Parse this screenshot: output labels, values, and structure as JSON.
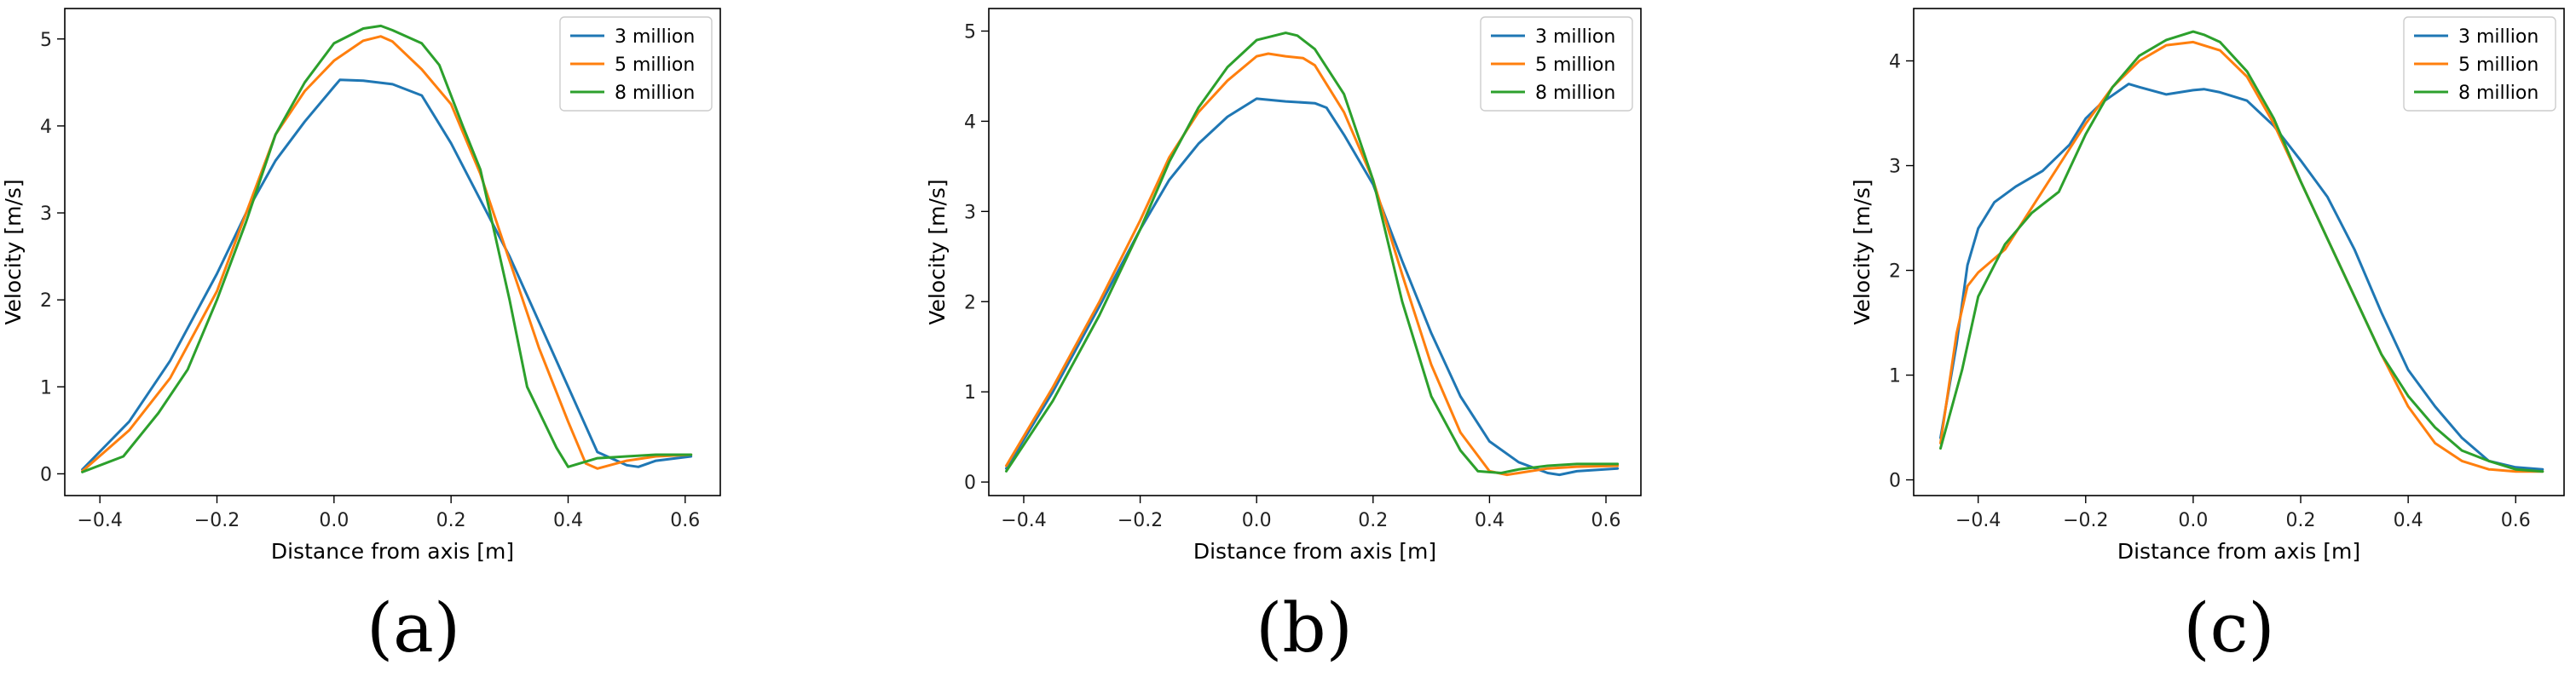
{
  "chart_data": [
    {
      "type": "line",
      "panel_label": "(a)",
      "xlabel": "Distance from axis [m]",
      "ylabel": "Velocity [m/s]",
      "xlim": [
        -0.46,
        0.66
      ],
      "ylim": [
        -0.25,
        5.35
      ],
      "xticks": [
        -0.4,
        -0.2,
        0.0,
        0.2,
        0.4,
        0.6
      ],
      "xtick_labels": [
        "−0.4",
        "−0.2",
        "0.0",
        "0.2",
        "0.4",
        "0.6"
      ],
      "yticks": [
        0,
        1,
        2,
        3,
        4,
        5
      ],
      "ytick_labels": [
        "0",
        "1",
        "2",
        "3",
        "4",
        "5"
      ],
      "grid": false,
      "legend_position": "top-right",
      "series": [
        {
          "name": "3 million",
          "color": "#1f77b4",
          "x": [
            -0.43,
            -0.35,
            -0.28,
            -0.2,
            -0.15,
            -0.1,
            -0.05,
            0,
            0.01,
            0.05,
            0.1,
            0.15,
            0.2,
            0.25,
            0.3,
            0.35,
            0.4,
            0.45,
            0.5,
            0.52,
            0.55,
            0.61
          ],
          "y": [
            0.05,
            0.6,
            1.3,
            2.3,
            3.0,
            3.6,
            4.05,
            4.45,
            4.53,
            4.52,
            4.48,
            4.35,
            3.8,
            3.15,
            2.5,
            1.75,
            1.0,
            0.25,
            0.1,
            0.08,
            0.15,
            0.2
          ]
        },
        {
          "name": "5 million",
          "color": "#ff7f0e",
          "x": [
            -0.43,
            -0.35,
            -0.28,
            -0.2,
            -0.15,
            -0.1,
            -0.05,
            0,
            0.05,
            0.08,
            0.1,
            0.15,
            0.2,
            0.25,
            0.3,
            0.35,
            0.4,
            0.43,
            0.45,
            0.5,
            0.55,
            0.61
          ],
          "y": [
            0.03,
            0.5,
            1.1,
            2.1,
            3.0,
            3.9,
            4.4,
            4.75,
            4.98,
            5.03,
            4.97,
            4.65,
            4.25,
            3.45,
            2.45,
            1.45,
            0.6,
            0.12,
            0.06,
            0.15,
            0.2,
            0.22
          ]
        },
        {
          "name": "8 million",
          "color": "#2ca02c",
          "x": [
            -0.43,
            -0.36,
            -0.3,
            -0.25,
            -0.2,
            -0.15,
            -0.1,
            -0.05,
            0,
            0.05,
            0.08,
            0.1,
            0.15,
            0.18,
            0.22,
            0.25,
            0.3,
            0.33,
            0.38,
            0.4,
            0.45,
            0.5,
            0.55,
            0.61
          ],
          "y": [
            0.02,
            0.2,
            0.7,
            1.2,
            2.0,
            2.9,
            3.9,
            4.5,
            4.95,
            5.12,
            5.15,
            5.1,
            4.95,
            4.7,
            4.0,
            3.5,
            2.0,
            1.0,
            0.3,
            0.08,
            0.18,
            0.2,
            0.22,
            0.22
          ]
        }
      ]
    },
    {
      "type": "line",
      "panel_label": "(b)",
      "xlabel": "Distance from axis [m]",
      "ylabel": "Velocity [m/s]",
      "xlim": [
        -0.46,
        0.66
      ],
      "ylim": [
        -0.15,
        5.25
      ],
      "xticks": [
        -0.4,
        -0.2,
        0.0,
        0.2,
        0.4,
        0.6
      ],
      "xtick_labels": [
        "−0.4",
        "−0.2",
        "0.0",
        "0.2",
        "0.4",
        "0.6"
      ],
      "yticks": [
        0,
        1,
        2,
        3,
        4,
        5
      ],
      "ytick_labels": [
        "0",
        "1",
        "2",
        "3",
        "4",
        "5"
      ],
      "grid": false,
      "legend_position": "top-right",
      "series": [
        {
          "name": "3 million",
          "color": "#1f77b4",
          "x": [
            -0.43,
            -0.35,
            -0.27,
            -0.2,
            -0.15,
            -0.1,
            -0.05,
            0,
            0.05,
            0.1,
            0.12,
            0.15,
            0.2,
            0.25,
            0.3,
            0.35,
            0.4,
            0.45,
            0.5,
            0.52,
            0.55,
            0.62
          ],
          "y": [
            0.15,
            1.0,
            1.95,
            2.8,
            3.35,
            3.75,
            4.05,
            4.25,
            4.22,
            4.2,
            4.15,
            3.85,
            3.3,
            2.45,
            1.65,
            0.95,
            0.45,
            0.22,
            0.1,
            0.08,
            0.12,
            0.15
          ]
        },
        {
          "name": "5 million",
          "color": "#ff7f0e",
          "x": [
            -0.43,
            -0.35,
            -0.27,
            -0.2,
            -0.15,
            -0.1,
            -0.05,
            0,
            0.02,
            0.05,
            0.08,
            0.1,
            0.15,
            0.2,
            0.25,
            0.3,
            0.35,
            0.4,
            0.43,
            0.45,
            0.5,
            0.55,
            0.62
          ],
          "y": [
            0.18,
            1.05,
            2.0,
            2.9,
            3.6,
            4.1,
            4.45,
            4.72,
            4.75,
            4.72,
            4.7,
            4.62,
            4.1,
            3.35,
            2.3,
            1.3,
            0.55,
            0.12,
            0.08,
            0.1,
            0.15,
            0.17,
            0.18
          ]
        },
        {
          "name": "8 million",
          "color": "#2ca02c",
          "x": [
            -0.43,
            -0.35,
            -0.27,
            -0.2,
            -0.15,
            -0.1,
            -0.05,
            0,
            0.05,
            0.07,
            0.1,
            0.15,
            0.2,
            0.25,
            0.3,
            0.35,
            0.38,
            0.42,
            0.45,
            0.5,
            0.55,
            0.62
          ],
          "y": [
            0.12,
            0.9,
            1.85,
            2.8,
            3.55,
            4.15,
            4.6,
            4.9,
            4.98,
            4.95,
            4.8,
            4.3,
            3.35,
            2.0,
            0.95,
            0.35,
            0.12,
            0.1,
            0.14,
            0.18,
            0.2,
            0.2
          ]
        }
      ]
    },
    {
      "type": "line",
      "panel_label": "(c)",
      "xlabel": "Distance from axis [m]",
      "ylabel": "Velocity [m/s]",
      "xlim": [
        -0.52,
        0.69
      ],
      "ylim": [
        -0.15,
        4.5
      ],
      "xticks": [
        -0.4,
        -0.2,
        0.0,
        0.2,
        0.4,
        0.6
      ],
      "xtick_labels": [
        "−0.4",
        "−0.2",
        "0.0",
        "0.2",
        "0.4",
        "0.6"
      ],
      "yticks": [
        0,
        1,
        2,
        3,
        4
      ],
      "ytick_labels": [
        "0",
        "1",
        "2",
        "3",
        "4"
      ],
      "grid": false,
      "legend_position": "top-right",
      "series": [
        {
          "name": "3 million",
          "color": "#1f77b4",
          "x": [
            -0.47,
            -0.44,
            -0.42,
            -0.4,
            -0.37,
            -0.33,
            -0.28,
            -0.23,
            -0.2,
            -0.17,
            -0.12,
            -0.1,
            -0.05,
            0,
            0.02,
            0.05,
            0.1,
            0.15,
            0.2,
            0.25,
            0.3,
            0.35,
            0.4,
            0.45,
            0.5,
            0.55,
            0.6,
            0.65
          ],
          "y": [
            0.4,
            1.3,
            2.05,
            2.4,
            2.65,
            2.8,
            2.95,
            3.2,
            3.45,
            3.6,
            3.78,
            3.75,
            3.68,
            3.72,
            3.73,
            3.7,
            3.62,
            3.38,
            3.05,
            2.7,
            2.2,
            1.6,
            1.05,
            0.7,
            0.4,
            0.18,
            0.12,
            0.1
          ]
        },
        {
          "name": "5 million",
          "color": "#ff7f0e",
          "x": [
            -0.47,
            -0.44,
            -0.42,
            -0.4,
            -0.35,
            -0.3,
            -0.25,
            -0.2,
            -0.15,
            -0.1,
            -0.05,
            0,
            0.05,
            0.1,
            0.15,
            0.2,
            0.25,
            0.3,
            0.35,
            0.4,
            0.45,
            0.5,
            0.55,
            0.6,
            0.65
          ],
          "y": [
            0.35,
            1.4,
            1.85,
            1.98,
            2.2,
            2.6,
            3.0,
            3.4,
            3.75,
            4.0,
            4.15,
            4.18,
            4.1,
            3.85,
            3.4,
            2.85,
            2.3,
            1.75,
            1.2,
            0.7,
            0.35,
            0.18,
            0.1,
            0.08,
            0.08
          ]
        },
        {
          "name": "8 million",
          "color": "#2ca02c",
          "x": [
            -0.47,
            -0.43,
            -0.4,
            -0.35,
            -0.3,
            -0.25,
            -0.2,
            -0.15,
            -0.1,
            -0.05,
            0,
            0.02,
            0.05,
            0.1,
            0.15,
            0.2,
            0.25,
            0.3,
            0.35,
            0.4,
            0.45,
            0.5,
            0.55,
            0.6,
            0.65
          ],
          "y": [
            0.3,
            1.05,
            1.75,
            2.25,
            2.55,
            2.75,
            3.3,
            3.75,
            4.05,
            4.2,
            4.28,
            4.25,
            4.18,
            3.9,
            3.45,
            2.85,
            2.3,
            1.75,
            1.2,
            0.8,
            0.5,
            0.28,
            0.18,
            0.1,
            0.08
          ]
        }
      ]
    }
  ]
}
